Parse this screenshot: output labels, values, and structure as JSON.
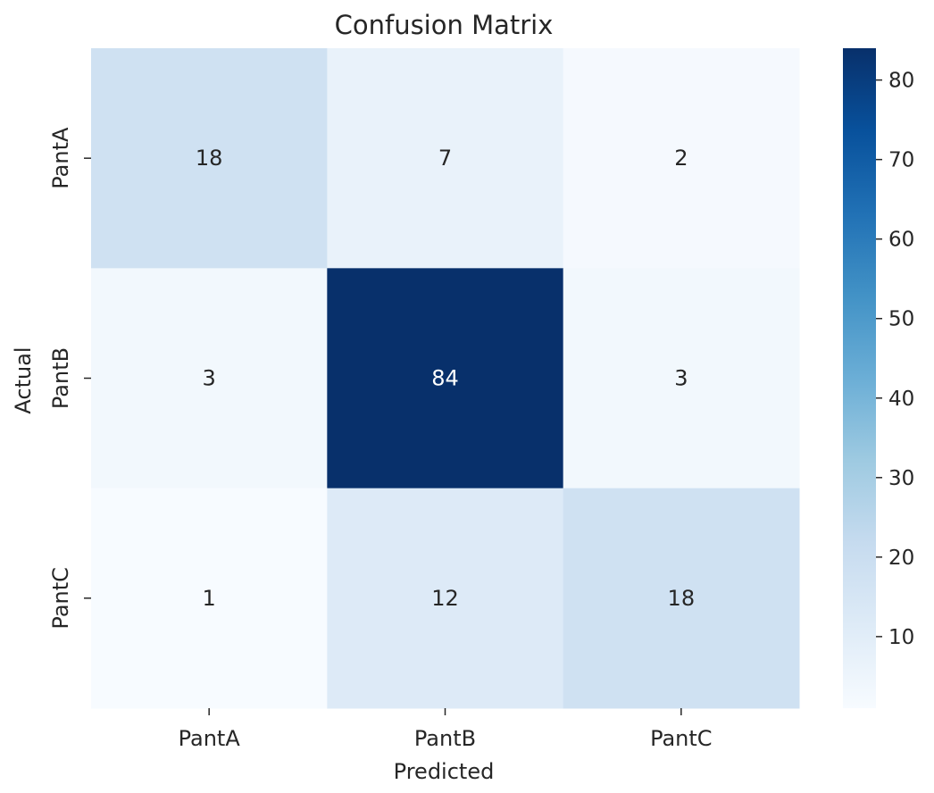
{
  "chart_data": {
    "type": "heatmap",
    "title": "Confusion Matrix",
    "xlabel": "Predicted",
    "ylabel": "Actual",
    "x_categories": [
      "PantA",
      "PantB",
      "PantC"
    ],
    "y_categories": [
      "PantA",
      "PantB",
      "PantC"
    ],
    "values": [
      [
        18,
        7,
        2
      ],
      [
        3,
        84,
        3
      ],
      [
        1,
        12,
        18
      ]
    ],
    "colormap": "Blues",
    "colorbar": {
      "min": 1,
      "max": 84,
      "ticks": [
        10,
        20,
        30,
        40,
        50,
        60,
        70,
        80
      ]
    }
  }
}
